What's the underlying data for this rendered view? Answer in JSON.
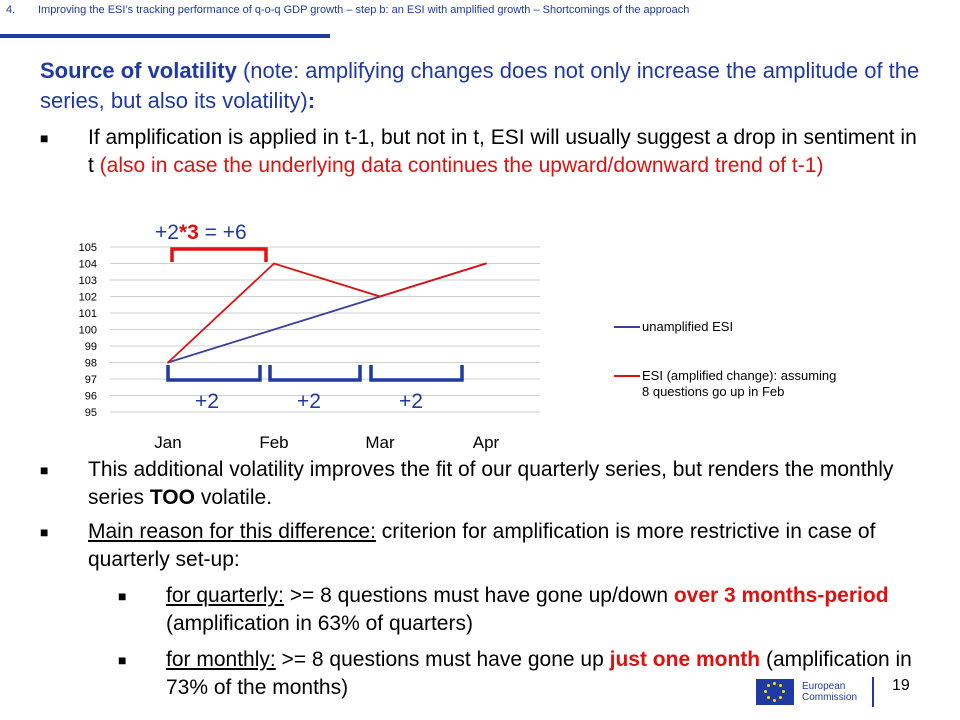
{
  "header": {
    "number": "4.",
    "title": "Improving the ESI’s tracking performance of q-o-q GDP growth – step b: an ESI with amplified growth – Shortcomings of the approach"
  },
  "intro": {
    "bold": "Source of volatility",
    "rest": " (note: amplifying changes does not only increase the amplitude of the series, but also its volatility)",
    "colon": ":"
  },
  "bullet1": {
    "black": "If amplification is applied in t-1, but not in t, ESI will usually suggest a drop in sentiment in t ",
    "red": "(also in case the underlying data continues the upward/downward trend of t-1)"
  },
  "chart_data": {
    "type": "line",
    "categories": [
      "Jan",
      "Feb",
      "Mar",
      "Apr"
    ],
    "ylim": [
      95,
      105
    ],
    "yticks": [
      "95",
      "96",
      "97",
      "98",
      "99",
      "100",
      "101",
      "102",
      "103",
      "104",
      "105"
    ],
    "series": [
      {
        "name": "unamplified ESI",
        "color": "#3a3f9a",
        "values": [
          98,
          100,
          102,
          104
        ]
      },
      {
        "name": "ESI (amplified change): assuming 8 questions go up in Feb",
        "color": "#e01010",
        "values": [
          98,
          104,
          102,
          104
        ]
      }
    ],
    "legend_position": "right",
    "annotations": {
      "top_label_a": "+2",
      "top_label_b": "*3",
      "top_label_c": " = +6",
      "bottom_labels": [
        "+2",
        "+2",
        "+2"
      ]
    }
  },
  "bullet2": {
    "a": "This additional volatility improves the fit of our quarterly series, but renders the monthly series ",
    "bold": "TOO",
    "b": " volatile."
  },
  "bullet3": {
    "u": "Main reason for this difference:",
    "rest": " criterion for amplification is more restrictive in case of quarterly set-up:"
  },
  "bullet4": {
    "u": "for quarterly:",
    "a": " >= 8 questions must have gone up/down ",
    "red": "over 3 months-period",
    "b": " (amplification in 63% of quarters)"
  },
  "bullet5": {
    "u": "for monthly:",
    "a": " >= 8 questions must have gone up ",
    "red": "just one month",
    "b": " (amplification in 73% of the months)"
  },
  "footer": {
    "org_line1": "European",
    "org_line2": "Commission",
    "page": "19"
  },
  "icons": {
    "bullet": "square-bullet-icon",
    "flag": "eu-flag-icon"
  },
  "colors": {
    "accent": "#1f3aa0",
    "highlight": "#e01010"
  }
}
